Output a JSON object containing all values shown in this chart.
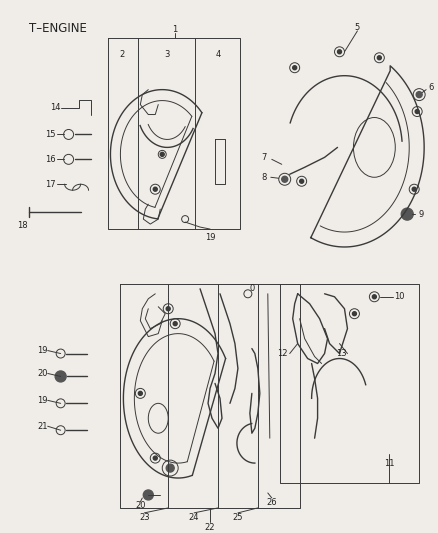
{
  "title": "T–ENGINE",
  "bg_color": "#f0ede8",
  "line_color": "#3a3a3a",
  "label_color": "#222222",
  "figsize": [
    4.38,
    5.33
  ],
  "dpi": 100,
  "font_size": 6.0
}
